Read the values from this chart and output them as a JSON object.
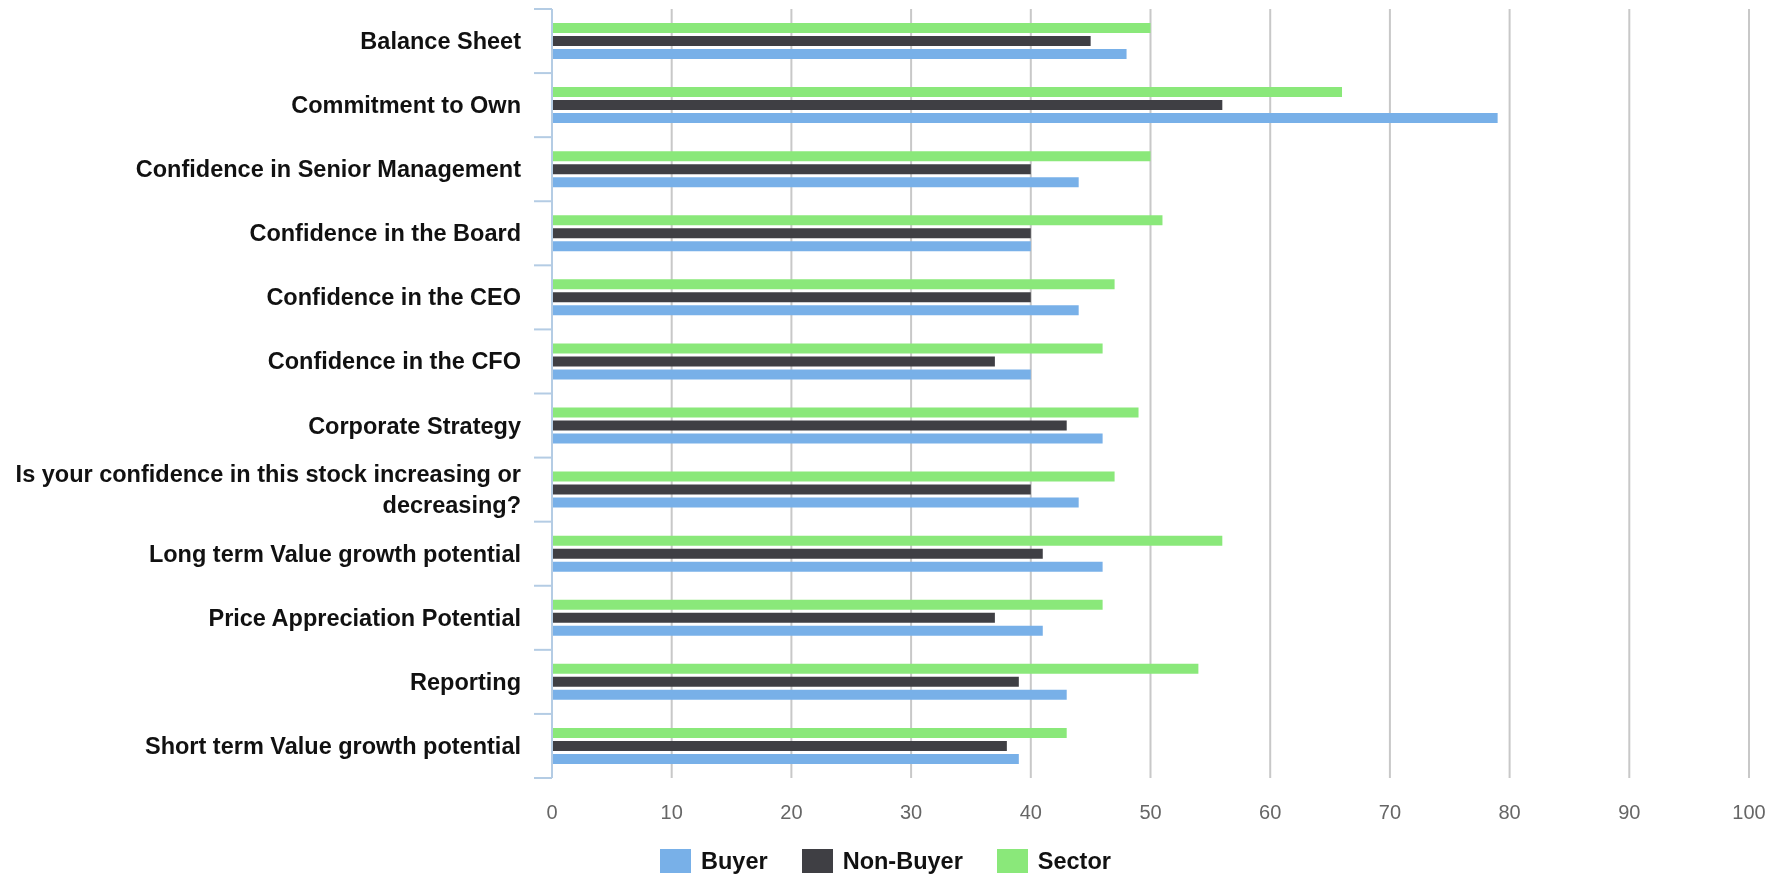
{
  "chart_data": {
    "type": "bar",
    "orientation": "horizontal",
    "categories": [
      "Balance Sheet",
      "Commitment to Own",
      "Confidence in Senior Management",
      "Confidence in the Board",
      "Confidence in the CEO",
      "Confidence in the CFO",
      "Corporate Strategy",
      "Is your confidence in this stock increasing or decreasing?",
      "Long term Value growth potential",
      "Price Appreciation Potential",
      "Reporting",
      "Short term Value growth potential"
    ],
    "series": [
      {
        "name": "Buyer",
        "color": "#78b0e8",
        "values": [
          48,
          79,
          44,
          40,
          44,
          40,
          46,
          44,
          46,
          41,
          43,
          39
        ]
      },
      {
        "name": "Non-Buyer",
        "color": "#3f3f44",
        "values": [
          45,
          56,
          40,
          40,
          40,
          37,
          43,
          40,
          41,
          37,
          39,
          38
        ]
      },
      {
        "name": "Sector",
        "color": "#8ae87a",
        "values": [
          50,
          66,
          50,
          51,
          47,
          46,
          49,
          47,
          56,
          46,
          54,
          43
        ]
      }
    ],
    "xlim": [
      0,
      100
    ],
    "xticks": [
      0,
      10,
      20,
      30,
      40,
      50,
      60,
      70,
      80,
      90,
      100
    ],
    "grid": "x",
    "legend": "bottom"
  }
}
